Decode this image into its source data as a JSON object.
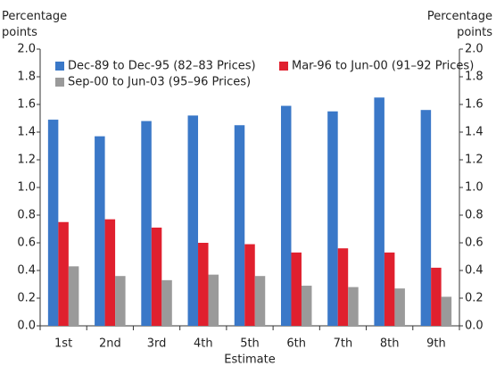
{
  "chart_data": {
    "type": "bar",
    "ylabel": "Percentage points",
    "y2label": "Percentage points",
    "xlabel": "Estimate",
    "categories": [
      "1st",
      "2nd",
      "3rd",
      "4th",
      "5th",
      "6th",
      "7th",
      "8th",
      "9th"
    ],
    "series": [
      {
        "name": "Dec-89 to Dec-95 (82–83 Prices)",
        "color": "#3a78c8",
        "values": [
          1.49,
          1.37,
          1.48,
          1.52,
          1.45,
          1.59,
          1.55,
          1.65,
          1.56
        ]
      },
      {
        "name": "Mar-96 to Jun-00 (91–92 Prices)",
        "color": "#e0202e",
        "values": [
          0.75,
          0.77,
          0.71,
          0.6,
          0.59,
          0.53,
          0.56,
          0.53,
          0.42
        ]
      },
      {
        "name": "Sep-00 to Jun-03 (95–96 Prices)",
        "color": "#9a9a9a",
        "values": [
          0.43,
          0.36,
          0.33,
          0.37,
          0.36,
          0.29,
          0.28,
          0.27,
          0.21
        ]
      }
    ],
    "ylim": [
      0,
      2
    ],
    "yticks": [
      {
        "value": 0,
        "label": "0.0"
      },
      {
        "value": 0.2,
        "label": "0.2"
      },
      {
        "value": 0.4,
        "label": "0.4"
      },
      {
        "value": 0.6,
        "label": "0.6"
      },
      {
        "value": 0.8,
        "label": "0.8"
      },
      {
        "value": 1,
        "label": "1.0"
      },
      {
        "value": 1.2,
        "label": "1.2"
      },
      {
        "value": 1.4,
        "label": "1.4"
      },
      {
        "value": 1.6,
        "label": "1.6"
      },
      {
        "value": 1.8,
        "label": "1.8"
      },
      {
        "value": 2,
        "label": "2.0"
      }
    ],
    "y2lim": [
      0,
      2
    ],
    "y2ticks": [
      {
        "value": 0,
        "label": "0.0"
      },
      {
        "value": 0.2,
        "label": "0.2"
      },
      {
        "value": 0.4,
        "label": "0.4"
      },
      {
        "value": 0.6,
        "label": "0.6"
      },
      {
        "value": 0.8,
        "label": "0.8"
      },
      {
        "value": 1,
        "label": "1.0"
      },
      {
        "value": 1.2,
        "label": "1.2"
      },
      {
        "value": 1.4,
        "label": "1.4"
      },
      {
        "value": 1.6,
        "label": "1.6"
      },
      {
        "value": 1.8,
        "label": "1.8"
      },
      {
        "value": 2,
        "label": "2.0"
      }
    ],
    "grid": false,
    "legend": "upper left"
  }
}
